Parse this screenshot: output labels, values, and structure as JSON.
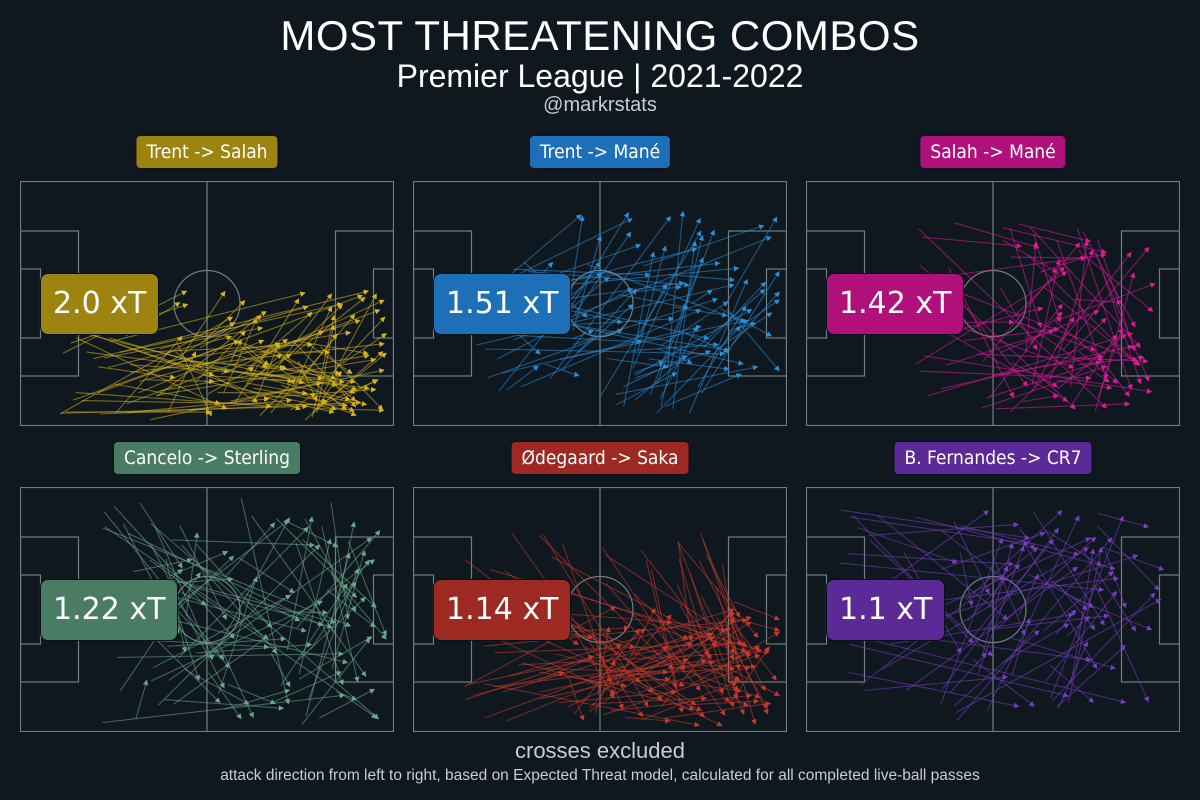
{
  "header": {
    "title": "MOST THREATENING COMBOS",
    "subtitle": "Premier League | 2021-2022",
    "handle": "@markrstats"
  },
  "panels": [
    {
      "label": "Trent -> Salah",
      "xt": "2.0 xT",
      "color": "#d6b21c",
      "box_color": "#9d8410"
    },
    {
      "label": "Trent -> Mané",
      "xt": "1.51 xT",
      "color": "#2a8fd9",
      "box_color": "#1d70b8"
    },
    {
      "label": "Salah -> Mané",
      "xt": "1.42 xT",
      "color": "#e0199a",
      "box_color": "#b0107a"
    },
    {
      "label": "Cancelo -> Sterling",
      "xt": "1.22 xT",
      "color": "#6aa88a",
      "box_color": "#4a7c63"
    },
    {
      "label": "Ødegaard -> Saka",
      "xt": "1.14 xT",
      "color": "#c63a2a",
      "box_color": "#9c2a22"
    },
    {
      "label": "B. Fernandes -> CR7",
      "xt": "1.1 xT",
      "color": "#7a3cc0",
      "box_color": "#5b2a96"
    }
  ],
  "footer": {
    "note": "crosses excluded",
    "description": "attack direction from left to right, based on Expected Threat model, calculated for all completed live-ball passes"
  }
}
